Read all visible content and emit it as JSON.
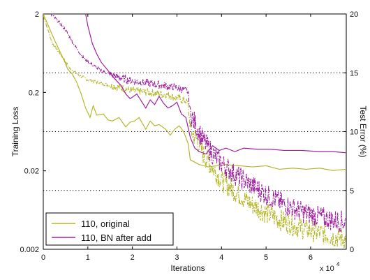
{
  "chart_data": {
    "type": "line",
    "xlabel": "Iterations",
    "x_multiplier_label": "x 10",
    "x_multiplier_exp": "4",
    "ylabel_left": "Training Loss",
    "ylabel_right": "Test Error (%)",
    "xlim": [
      0,
      6.8
    ],
    "ylim_left": [
      0.002,
      2
    ],
    "yscale_left": "log",
    "ylim_right": [
      0,
      20
    ],
    "x_ticks": [
      0,
      1,
      2,
      3,
      4,
      5,
      6
    ],
    "y_left_ticks": [
      {
        "value": 2,
        "label": "2"
      },
      {
        "value": 0.2,
        "label": "0.2"
      },
      {
        "value": 0.02,
        "label": "0.02"
      },
      {
        "value": 0.002,
        "label": "0.002"
      }
    ],
    "y_right_ticks": [
      0,
      5,
      10,
      15,
      20
    ],
    "grid": "dotted horizontal at right-axis 5, 10, 15",
    "legend_position": "bottom-left",
    "series": [
      {
        "name": "110, original",
        "color": "#b5b82a",
        "test_error": [
          [
            0.0,
            20.0
          ],
          [
            0.25,
            17.8
          ],
          [
            0.45,
            16.2
          ],
          [
            0.55,
            15.3
          ],
          [
            0.65,
            14.9
          ],
          [
            0.75,
            14.2
          ],
          [
            0.85,
            13.2
          ],
          [
            0.95,
            12.0
          ],
          [
            1.05,
            11.2
          ],
          [
            1.12,
            12.2
          ],
          [
            1.2,
            11.4
          ],
          [
            1.35,
            11.5
          ],
          [
            1.45,
            11.0
          ],
          [
            1.55,
            10.9
          ],
          [
            1.7,
            11.2
          ],
          [
            1.85,
            10.4
          ],
          [
            1.95,
            10.8
          ],
          [
            2.05,
            10.9
          ],
          [
            2.15,
            11.2
          ],
          [
            2.3,
            10.2
          ],
          [
            2.4,
            10.9
          ],
          [
            2.5,
            10.5
          ],
          [
            2.6,
            10.6
          ],
          [
            2.75,
            10.2
          ],
          [
            2.85,
            9.7
          ],
          [
            2.95,
            10.2
          ],
          [
            3.05,
            10.5
          ],
          [
            3.15,
            10.0
          ],
          [
            3.25,
            9.0
          ],
          [
            3.3,
            7.6
          ],
          [
            3.4,
            7.4
          ],
          [
            3.5,
            7.2
          ],
          [
            3.7,
            7.0
          ],
          [
            3.9,
            7.1
          ],
          [
            4.1,
            7.2
          ],
          [
            4.4,
            7.1
          ],
          [
            4.7,
            7.0
          ],
          [
            5.0,
            7.1
          ],
          [
            5.3,
            6.8
          ],
          [
            5.6,
            6.9
          ],
          [
            5.9,
            6.8
          ],
          [
            6.2,
            6.9
          ],
          [
            6.5,
            6.7
          ],
          [
            6.8,
            6.8
          ]
        ],
        "training_loss": [
          [
            0.0,
            1.9
          ],
          [
            0.1,
            1.3
          ],
          [
            0.2,
            0.85
          ],
          [
            0.3,
            0.72
          ],
          [
            0.4,
            0.6
          ],
          [
            0.6,
            0.4
          ],
          [
            0.8,
            0.33
          ],
          [
            1.0,
            0.29
          ],
          [
            1.3,
            0.26
          ],
          [
            1.6,
            0.24
          ],
          [
            2.0,
            0.21
          ],
          [
            2.4,
            0.2
          ],
          [
            2.8,
            0.185
          ],
          [
            3.0,
            0.17
          ],
          [
            3.2,
            0.155
          ],
          [
            3.25,
            0.14
          ],
          [
            3.3,
            0.065
          ],
          [
            3.45,
            0.05
          ],
          [
            3.6,
            0.032
          ],
          [
            3.8,
            0.022
          ],
          [
            4.0,
            0.015
          ],
          [
            4.3,
            0.011
          ],
          [
            4.6,
            0.008
          ],
          [
            5.0,
            0.0058
          ],
          [
            5.4,
            0.0045
          ],
          [
            5.8,
            0.0037
          ],
          [
            6.2,
            0.0032
          ],
          [
            6.5,
            0.0029
          ],
          [
            6.8,
            0.0027
          ]
        ]
      },
      {
        "name": "110, BN after add",
        "color": "#a020a0",
        "test_error": [
          [
            0.95,
            20.0
          ],
          [
            1.0,
            19.0
          ],
          [
            1.1,
            17.5
          ],
          [
            1.2,
            16.6
          ],
          [
            1.3,
            15.9
          ],
          [
            1.45,
            15.2
          ],
          [
            1.6,
            14.5
          ],
          [
            1.75,
            13.9
          ],
          [
            1.85,
            13.2
          ],
          [
            1.95,
            12.8
          ],
          [
            2.1,
            13.2
          ],
          [
            2.2,
            12.6
          ],
          [
            2.3,
            12.0
          ],
          [
            2.4,
            12.7
          ],
          [
            2.5,
            12.3
          ],
          [
            2.6,
            13.0
          ],
          [
            2.7,
            12.4
          ],
          [
            2.8,
            12.0
          ],
          [
            2.9,
            12.2
          ],
          [
            3.0,
            12.5
          ],
          [
            3.1,
            11.5
          ],
          [
            3.2,
            11.2
          ],
          [
            3.3,
            9.5
          ],
          [
            3.4,
            8.6
          ],
          [
            3.5,
            8.3
          ],
          [
            3.65,
            8.1
          ],
          [
            3.8,
            8.8
          ],
          [
            3.95,
            8.4
          ],
          [
            4.1,
            8.6
          ],
          [
            4.3,
            8.3
          ],
          [
            4.5,
            8.6
          ],
          [
            4.8,
            8.5
          ],
          [
            5.1,
            8.5
          ],
          [
            5.4,
            8.4
          ],
          [
            5.8,
            8.4
          ],
          [
            6.2,
            8.3
          ],
          [
            6.5,
            8.3
          ],
          [
            6.8,
            8.2
          ]
        ],
        "training_loss": [
          [
            0.15,
            2.0
          ],
          [
            0.3,
            1.7
          ],
          [
            0.5,
            1.25
          ],
          [
            0.7,
            0.8
          ],
          [
            0.9,
            0.55
          ],
          [
            1.1,
            0.45
          ],
          [
            1.3,
            0.38
          ],
          [
            1.6,
            0.32
          ],
          [
            2.0,
            0.28
          ],
          [
            2.4,
            0.26
          ],
          [
            2.8,
            0.24
          ],
          [
            3.0,
            0.23
          ],
          [
            3.2,
            0.21
          ],
          [
            3.25,
            0.2
          ],
          [
            3.3,
            0.11
          ],
          [
            3.45,
            0.07
          ],
          [
            3.6,
            0.048
          ],
          [
            3.8,
            0.033
          ],
          [
            4.0,
            0.025
          ],
          [
            4.3,
            0.018
          ],
          [
            4.6,
            0.014
          ],
          [
            5.0,
            0.01
          ],
          [
            5.4,
            0.0075
          ],
          [
            5.8,
            0.006
          ],
          [
            6.2,
            0.0052
          ],
          [
            6.5,
            0.0047
          ],
          [
            6.8,
            0.0045
          ]
        ]
      }
    ]
  }
}
